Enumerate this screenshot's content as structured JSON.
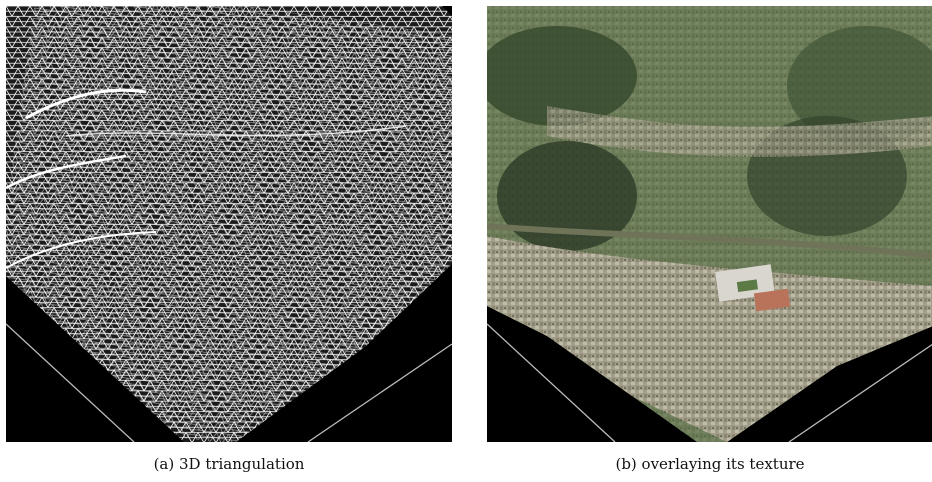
{
  "figure": {
    "panel_a": {
      "caption": "(a)  3D triangulation",
      "background": "#000000",
      "mesh_color": "#ffffff"
    },
    "panel_b": {
      "caption": "(b)  overlaying its texture",
      "background": "#000000",
      "colors": {
        "vegetation": "#4f6a3e",
        "urban": "#a7a48f",
        "shadow": "#283524",
        "stadium": "#d9d6d0",
        "track": "#b9735a"
      }
    }
  }
}
